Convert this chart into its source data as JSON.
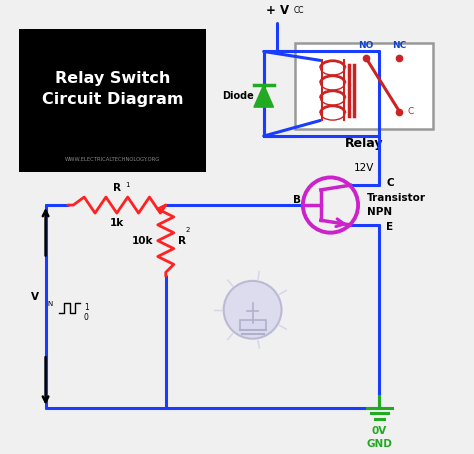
{
  "title": "Relay Switch\nCircuit Diagram",
  "subtitle": "WWW.ELECTRICALTECHNOLOGY.ORG",
  "relay_label": "Relay",
  "relay_voltage": "12V",
  "transistor_label": "Transistor\nNPN",
  "diode_label": "Diode",
  "r1_label": "R",
  "r1_sub": "1",
  "r1_value": "1k",
  "r2_label": "R",
  "r2_sub": "2",
  "r2_value": "10k",
  "vcc_label": "+ V",
  "vcc_sub": "CC",
  "vin_label": "V",
  "vin_sub": "IN",
  "gnd_label": "0V\nGND",
  "no_label": "NO",
  "nc_label": "NC",
  "c_label": "C",
  "b_label": "B",
  "e_label": "E",
  "bg_color": "#f0f0f0",
  "wire_color": "#1a3cff",
  "resistor_color": "#ff2222",
  "diode_color": "#22aa22",
  "transistor_color": "#cc22cc",
  "relay_coil_color": "#cc2222",
  "relay_switch_color": "#cc2222",
  "text_color": "#000000",
  "title_bg": "#000000",
  "title_fg": "#ffffff",
  "gnd_color": "#22aa22",
  "light_color": "#d8d8ee",
  "no_nc_color": "#1144cc"
}
